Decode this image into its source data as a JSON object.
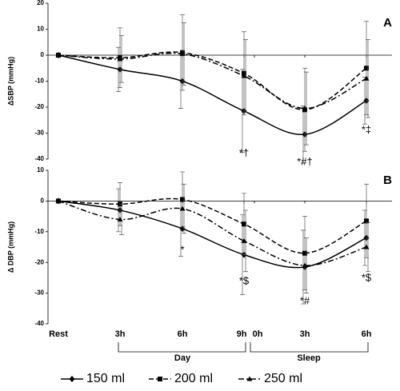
{
  "chart_data": [
    {
      "type": "line",
      "title": "A",
      "y_label": "ΔSBP (mmHg)",
      "ylim": [
        -40,
        20
      ],
      "yticks": [
        -40,
        -30,
        -20,
        -10,
        0,
        10,
        20
      ],
      "series": [
        {
          "name": "150 ml",
          "color": "#000000",
          "marker": "diamond",
          "dash": "solid",
          "values": [
            0,
            -5.5,
            -10,
            -21.5,
            null,
            -30.5,
            -17.5
          ],
          "errors": [
            null,
            8.5,
            10.5,
            16,
            null,
            11,
            9
          ]
        },
        {
          "name": "200 ml",
          "color": "#000000",
          "marker": "square",
          "dash": "dash",
          "values": [
            0,
            -1,
            1,
            -7,
            null,
            -21,
            -5
          ],
          "errors": [
            null,
            11.5,
            14.5,
            16,
            null,
            16,
            18
          ]
        },
        {
          "name": "250 ml",
          "color": "#000000",
          "marker": "triangle",
          "dash": "dashdot",
          "values": [
            0,
            -1.5,
            0.5,
            -8,
            null,
            -20.5,
            -9
          ],
          "errors": [
            null,
            9,
            12,
            14,
            null,
            14,
            15
          ]
        }
      ],
      "annotations": [
        "*†",
        "*#†",
        "*‡"
      ]
    },
    {
      "type": "line",
      "title": "B",
      "y_label": "Δ DBP (mmHg)",
      "ylim": [
        -40,
        10
      ],
      "yticks": [
        -40,
        -30,
        -20,
        -10,
        0,
        10
      ],
      "categories": [
        "Rest",
        "3h",
        "6h",
        "9h",
        "0h",
        "3h",
        "6h"
      ],
      "groups": [
        "Day",
        "Sleep"
      ],
      "series": [
        {
          "values": [
            0,
            -3,
            -9,
            -17.5,
            null,
            -21.5,
            -12
          ],
          "errors": [
            null,
            7,
            9,
            13,
            null,
            12,
            9
          ]
        },
        {
          "values": [
            0,
            -1,
            0.5,
            -7.5,
            null,
            -17,
            -6.5
          ],
          "errors": [
            null,
            7,
            9,
            10,
            null,
            12,
            12
          ]
        },
        {
          "values": [
            0,
            -6,
            -2.5,
            -13,
            null,
            -21,
            -15
          ],
          "errors": [
            null,
            5,
            8,
            10,
            null,
            9,
            8
          ]
        }
      ],
      "annotations": [
        "*",
        "*$",
        "*#",
        "*$"
      ]
    }
  ]
}
